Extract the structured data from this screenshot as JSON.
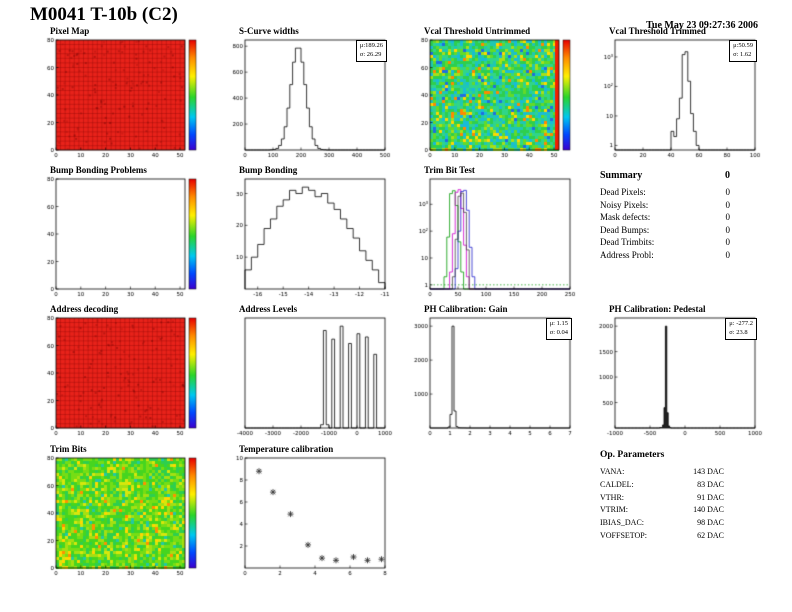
{
  "page": {
    "title": "M0041 T-10b (C2)",
    "timestamp": "Tue May 23 09:27:36 2006"
  },
  "summary": {
    "title": "Summary",
    "total": "0",
    "rows": [
      {
        "label": "Dead Pixels:",
        "value": "0"
      },
      {
        "label": "Noisy Pixels:",
        "value": "0"
      },
      {
        "label": "Mask defects:",
        "value": "0"
      },
      {
        "label": "Dead Bumps:",
        "value": "0"
      },
      {
        "label": "Dead Trimbits:",
        "value": "0"
      },
      {
        "label": "Address Probl:",
        "value": "0"
      }
    ]
  },
  "op_parameters": {
    "title": "Op. Parameters",
    "rows": [
      {
        "label": "VANA:",
        "value": "143 DAC"
      },
      {
        "label": "CALDEL:",
        "value": "83 DAC"
      },
      {
        "label": "VTHR:",
        "value": "91 DAC"
      },
      {
        "label": "VTRIM:",
        "value": "140 DAC"
      },
      {
        "label": "IBIAS_DAC:",
        "value": "98 DAC"
      },
      {
        "label": "VOFFSETOP:",
        "value": "62 DAC"
      }
    ]
  },
  "chart_data": [
    {
      "id": "pixel-map",
      "title": "Pixel Map",
      "type": "heatmap",
      "palette": "red",
      "fill_color": "#e8221a",
      "colorbar": true,
      "xlim": [
        0,
        52
      ],
      "ylim": [
        0,
        80
      ],
      "xticks": [
        0,
        10,
        20,
        30,
        40,
        50
      ],
      "yticks": [
        0,
        20,
        40,
        60,
        80
      ]
    },
    {
      "id": "scurve-widths",
      "title": "S-Curve widths",
      "type": "hist",
      "x0": 0,
      "dx": 10,
      "xticks": [
        0,
        100,
        200,
        300,
        400,
        500
      ],
      "yticks": [
        200,
        400,
        600,
        800
      ],
      "stats": [
        "μ:189.26",
        "σ: 26.29"
      ],
      "values": [
        0,
        0,
        0,
        0,
        0,
        0,
        0,
        0,
        0,
        2,
        4,
        12,
        35,
        85,
        179,
        323,
        504,
        677,
        785,
        785,
        677,
        504,
        323,
        179,
        85,
        35,
        12,
        4,
        2,
        0,
        0,
        0,
        0,
        0,
        0,
        0,
        0,
        0,
        0,
        0,
        0,
        0,
        0,
        0,
        0,
        0,
        0,
        0,
        0,
        0
      ]
    },
    {
      "id": "vcal-untrimmed",
      "title": "Vcal Threshold Untrimmed",
      "type": "heatmap",
      "palette": "noise",
      "colorbar": true,
      "right_column": "#f22000",
      "colors": [
        [
          0.24,
          "#2ecf4e"
        ],
        [
          0.44,
          "#30d589"
        ],
        [
          0.58,
          "#1fc7b4"
        ],
        [
          0.7,
          "#18bcd8"
        ],
        [
          0.82,
          "#63da2a"
        ],
        [
          0.89,
          "#a5e018"
        ],
        [
          0.93,
          "#ffd800"
        ],
        [
          0.965,
          "#1f6fe0"
        ],
        [
          1,
          "#ff8800"
        ]
      ],
      "xlim": [
        0,
        52
      ],
      "ylim": [
        0,
        80
      ],
      "xticks": [
        0,
        10,
        20,
        30,
        40,
        50
      ],
      "yticks": [
        0,
        20,
        40,
        60,
        80
      ]
    },
    {
      "id": "vcal-trimmed",
      "title": "Vcal Threshold Trimmed",
      "type": "hist",
      "logy": true,
      "x0": 0,
      "dx": 2,
      "xticks": [
        0,
        20,
        40,
        60,
        80,
        100
      ],
      "ylogticks": [
        [
          1,
          "1"
        ],
        [
          10,
          "10"
        ],
        [
          100,
          "10²"
        ],
        [
          1000,
          "10³"
        ]
      ],
      "stats": [
        "μ:50.59",
        "σ: 1.62"
      ],
      "values": [
        0,
        0,
        0,
        0,
        0,
        0,
        0,
        0,
        0,
        0,
        0,
        0,
        0,
        0,
        0,
        0,
        0,
        0,
        0,
        0,
        3,
        2,
        8,
        40,
        1200,
        1500,
        150,
        12,
        3,
        1,
        0,
        0,
        0,
        0,
        0,
        0,
        0,
        0,
        0,
        0,
        0,
        0,
        0,
        0,
        0,
        0,
        0,
        0,
        0,
        0
      ]
    },
    {
      "id": "bump-problems",
      "title": "Bump Bonding Problems",
      "type": "heatmap",
      "palette": "empty",
      "colorbar": true,
      "xlim": [
        0,
        52
      ],
      "ylim": [
        0,
        80
      ],
      "xticks": [
        0,
        10,
        20,
        30,
        40,
        50
      ],
      "yticks": [
        0,
        20,
        40,
        60,
        80
      ]
    },
    {
      "id": "bump-bonding",
      "title": "Bump Bonding",
      "type": "hist",
      "x0": -16.5,
      "dx": 0.25,
      "xticks": [
        -16,
        -15,
        -14,
        -13,
        -12,
        -11
      ],
      "yticks": [
        10,
        20,
        30
      ],
      "values": [
        6,
        10,
        14,
        19,
        22,
        26,
        28,
        31,
        30,
        32,
        31,
        29,
        30,
        27,
        25,
        22,
        19,
        16,
        12,
        9,
        6,
        2
      ]
    },
    {
      "id": "trimbit-test",
      "title": "Trim Bit Test",
      "type": "multihist",
      "logy": true,
      "x0": 0,
      "dx": 5,
      "xticks": [
        0,
        50,
        100,
        150,
        200,
        250
      ],
      "ylogticks": [
        [
          1,
          "1"
        ],
        [
          10,
          "10"
        ],
        [
          100,
          "10²"
        ],
        [
          1000,
          "10³"
        ]
      ],
      "series": [
        {
          "color": "#009900",
          "baseline": 1,
          "values": [
            0,
            0,
            0,
            0,
            0,
            2,
            60,
            2500,
            3200,
            900,
            40,
            3,
            0,
            0,
            0,
            0,
            0,
            0,
            0,
            0,
            0,
            0,
            0,
            0,
            0,
            0,
            0,
            0,
            0,
            0,
            0,
            0,
            0,
            0,
            0,
            0,
            0,
            0,
            0,
            0,
            0,
            0,
            0,
            0,
            0,
            0,
            0,
            0,
            0,
            0
          ]
        },
        {
          "color": "#cc00cc",
          "values": [
            0,
            0,
            0,
            0,
            0,
            0,
            0,
            3,
            80,
            2800,
            3500,
            700,
            30,
            2,
            0,
            0,
            0,
            0,
            0,
            0,
            0,
            0,
            0,
            0,
            0,
            0,
            0,
            0,
            0,
            0,
            0,
            0,
            0,
            0,
            0,
            0,
            0,
            0,
            0,
            0,
            0,
            0,
            0,
            0,
            0,
            0,
            0,
            0,
            0,
            0
          ]
        },
        {
          "color": "#2222cc",
          "values": [
            0,
            0,
            0,
            0,
            0,
            0,
            0,
            0,
            0,
            4,
            100,
            3000,
            3300,
            600,
            25,
            2,
            0,
            0,
            0,
            0,
            0,
            0,
            0,
            0,
            0,
            0,
            0,
            0,
            0,
            0,
            0,
            0,
            0,
            0,
            0,
            0,
            0,
            0,
            0,
            0,
            0,
            0,
            0,
            0,
            0,
            0,
            0,
            0,
            0,
            0
          ]
        },
        {
          "color": "#444444",
          "values": [
            0,
            0,
            0,
            0,
            0,
            0,
            0,
            0,
            2,
            50,
            2000,
            2600,
            500,
            20,
            0,
            0,
            0,
            0,
            0,
            0,
            0,
            0,
            0,
            0,
            0,
            0,
            0,
            0,
            0,
            0,
            0,
            0,
            0,
            0,
            0,
            0,
            0,
            0,
            0,
            0,
            0,
            0,
            0,
            0,
            0,
            0,
            0,
            0,
            0,
            0
          ]
        }
      ]
    },
    {
      "id": "address-decoding",
      "title": "Address decoding",
      "type": "heatmap",
      "palette": "red",
      "fill_color": "#e8221a",
      "colorbar": true,
      "xlim": [
        0,
        52
      ],
      "ylim": [
        0,
        80
      ],
      "xticks": [
        0,
        10,
        20,
        30,
        40,
        50
      ],
      "yticks": [
        0,
        20,
        40,
        60,
        80
      ]
    },
    {
      "id": "address-levels",
      "title": "Address Levels",
      "type": "hist",
      "x0": -4000,
      "dx": 100,
      "xticks": [
        -4000,
        -3000,
        -2000,
        -1000,
        0,
        1000
      ],
      "yticks": [],
      "values": [
        0,
        0,
        0,
        0,
        0,
        0,
        0,
        0,
        0,
        0,
        0,
        0,
        0,
        0,
        0,
        0,
        0,
        0,
        0,
        0,
        0,
        0,
        0,
        0,
        0,
        0,
        0,
        30,
        900,
        30,
        0,
        820,
        0,
        0,
        940,
        0,
        0,
        780,
        0,
        0,
        870,
        0,
        0,
        840,
        0,
        0,
        680,
        0,
        0,
        0
      ]
    },
    {
      "id": "ph-gain",
      "title": "PH Calibration: Gain",
      "type": "hist",
      "x0": 0,
      "dx": 0.1,
      "xticks": [
        0,
        1,
        2,
        3,
        4,
        5,
        6,
        7
      ],
      "yticks": [
        1000,
        2000,
        3000
      ],
      "stats": [
        "μ: 1.15",
        "σ: 0.04"
      ],
      "values": [
        0,
        0,
        0,
        0,
        0,
        0,
        0,
        0,
        0,
        30,
        400,
        3000,
        500,
        40,
        8,
        4,
        3,
        2,
        0,
        0,
        0,
        0,
        0,
        0,
        0,
        0,
        0,
        0,
        0,
        0,
        0,
        0,
        0,
        0,
        0,
        0,
        0,
        0,
        0,
        0,
        0,
        0,
        0,
        0,
        0,
        0,
        0,
        0,
        0,
        0,
        0,
        0,
        0,
        0,
        0,
        0,
        0,
        0,
        0,
        0,
        0,
        0,
        0,
        0,
        0,
        0,
        0,
        0,
        0,
        0
      ]
    },
    {
      "id": "ph-pedestal",
      "title": "PH Calibration: Pedestal",
      "type": "hist",
      "fill": "#222222",
      "x0": -1000,
      "dx": 20,
      "xticks": [
        -1000,
        -500,
        0,
        500,
        1000
      ],
      "yticks": [
        500,
        1000,
        1500,
        2000
      ],
      "stats": [
        "μ: -277.2",
        "σ: 23.8"
      ],
      "values": [
        0,
        0,
        0,
        0,
        0,
        0,
        0,
        0,
        0,
        0,
        0,
        0,
        0,
        0,
        0,
        0,
        0,
        0,
        0,
        0,
        0,
        0,
        0,
        0,
        0,
        0,
        0,
        0,
        0,
        0,
        0,
        0,
        8,
        10,
        60,
        400,
        2000,
        300,
        40,
        6,
        0,
        0,
        0,
        0,
        0,
        0,
        0,
        0,
        0,
        0,
        0,
        0,
        0,
        0,
        0,
        0,
        0,
        0,
        0,
        0,
        0,
        0,
        0,
        0,
        0,
        0,
        0,
        0,
        0,
        0,
        0,
        0,
        0,
        0,
        0,
        0,
        0,
        0,
        0,
        0,
        0,
        0,
        0,
        0,
        0,
        0,
        0,
        0,
        0,
        0,
        0,
        0,
        0,
        0,
        0,
        0,
        0,
        0,
        0,
        0
      ]
    },
    {
      "id": "trim-bits",
      "title": "Trim Bits",
      "type": "heatmap",
      "palette": "noise",
      "colorbar": true,
      "colors": [
        [
          0.3,
          "#46d51f"
        ],
        [
          0.52,
          "#76dd15"
        ],
        [
          0.67,
          "#a4e012"
        ],
        [
          0.82,
          "#2ecf4e"
        ],
        [
          0.9,
          "#d6e70c"
        ],
        [
          0.95,
          "#ffd800"
        ],
        [
          0.98,
          "#23c9a4"
        ],
        [
          1,
          "#ff9100"
        ]
      ],
      "xlim": [
        0,
        52
      ],
      "ylim": [
        0,
        80
      ],
      "xticks": [
        0,
        10,
        20,
        30,
        40,
        50
      ],
      "yticks": [
        0,
        20,
        40,
        60,
        80
      ]
    },
    {
      "id": "temp-calibration",
      "title": "Temperature calibration",
      "type": "scatter",
      "xlim": [
        0,
        8
      ],
      "ylim": [
        0,
        10
      ],
      "xticks": [
        0,
        2,
        4,
        6,
        8
      ],
      "yticks": [
        2,
        4,
        6,
        8,
        10
      ],
      "points": [
        [
          0.8,
          8.8
        ],
        [
          1.6,
          6.9
        ],
        [
          2.6,
          4.9
        ],
        [
          3.6,
          2.1
        ],
        [
          4.4,
          0.9
        ],
        [
          5.2,
          0.7
        ],
        [
          6.2,
          1.0
        ],
        [
          7.0,
          0.7
        ],
        [
          7.8,
          0.8
        ]
      ]
    }
  ]
}
